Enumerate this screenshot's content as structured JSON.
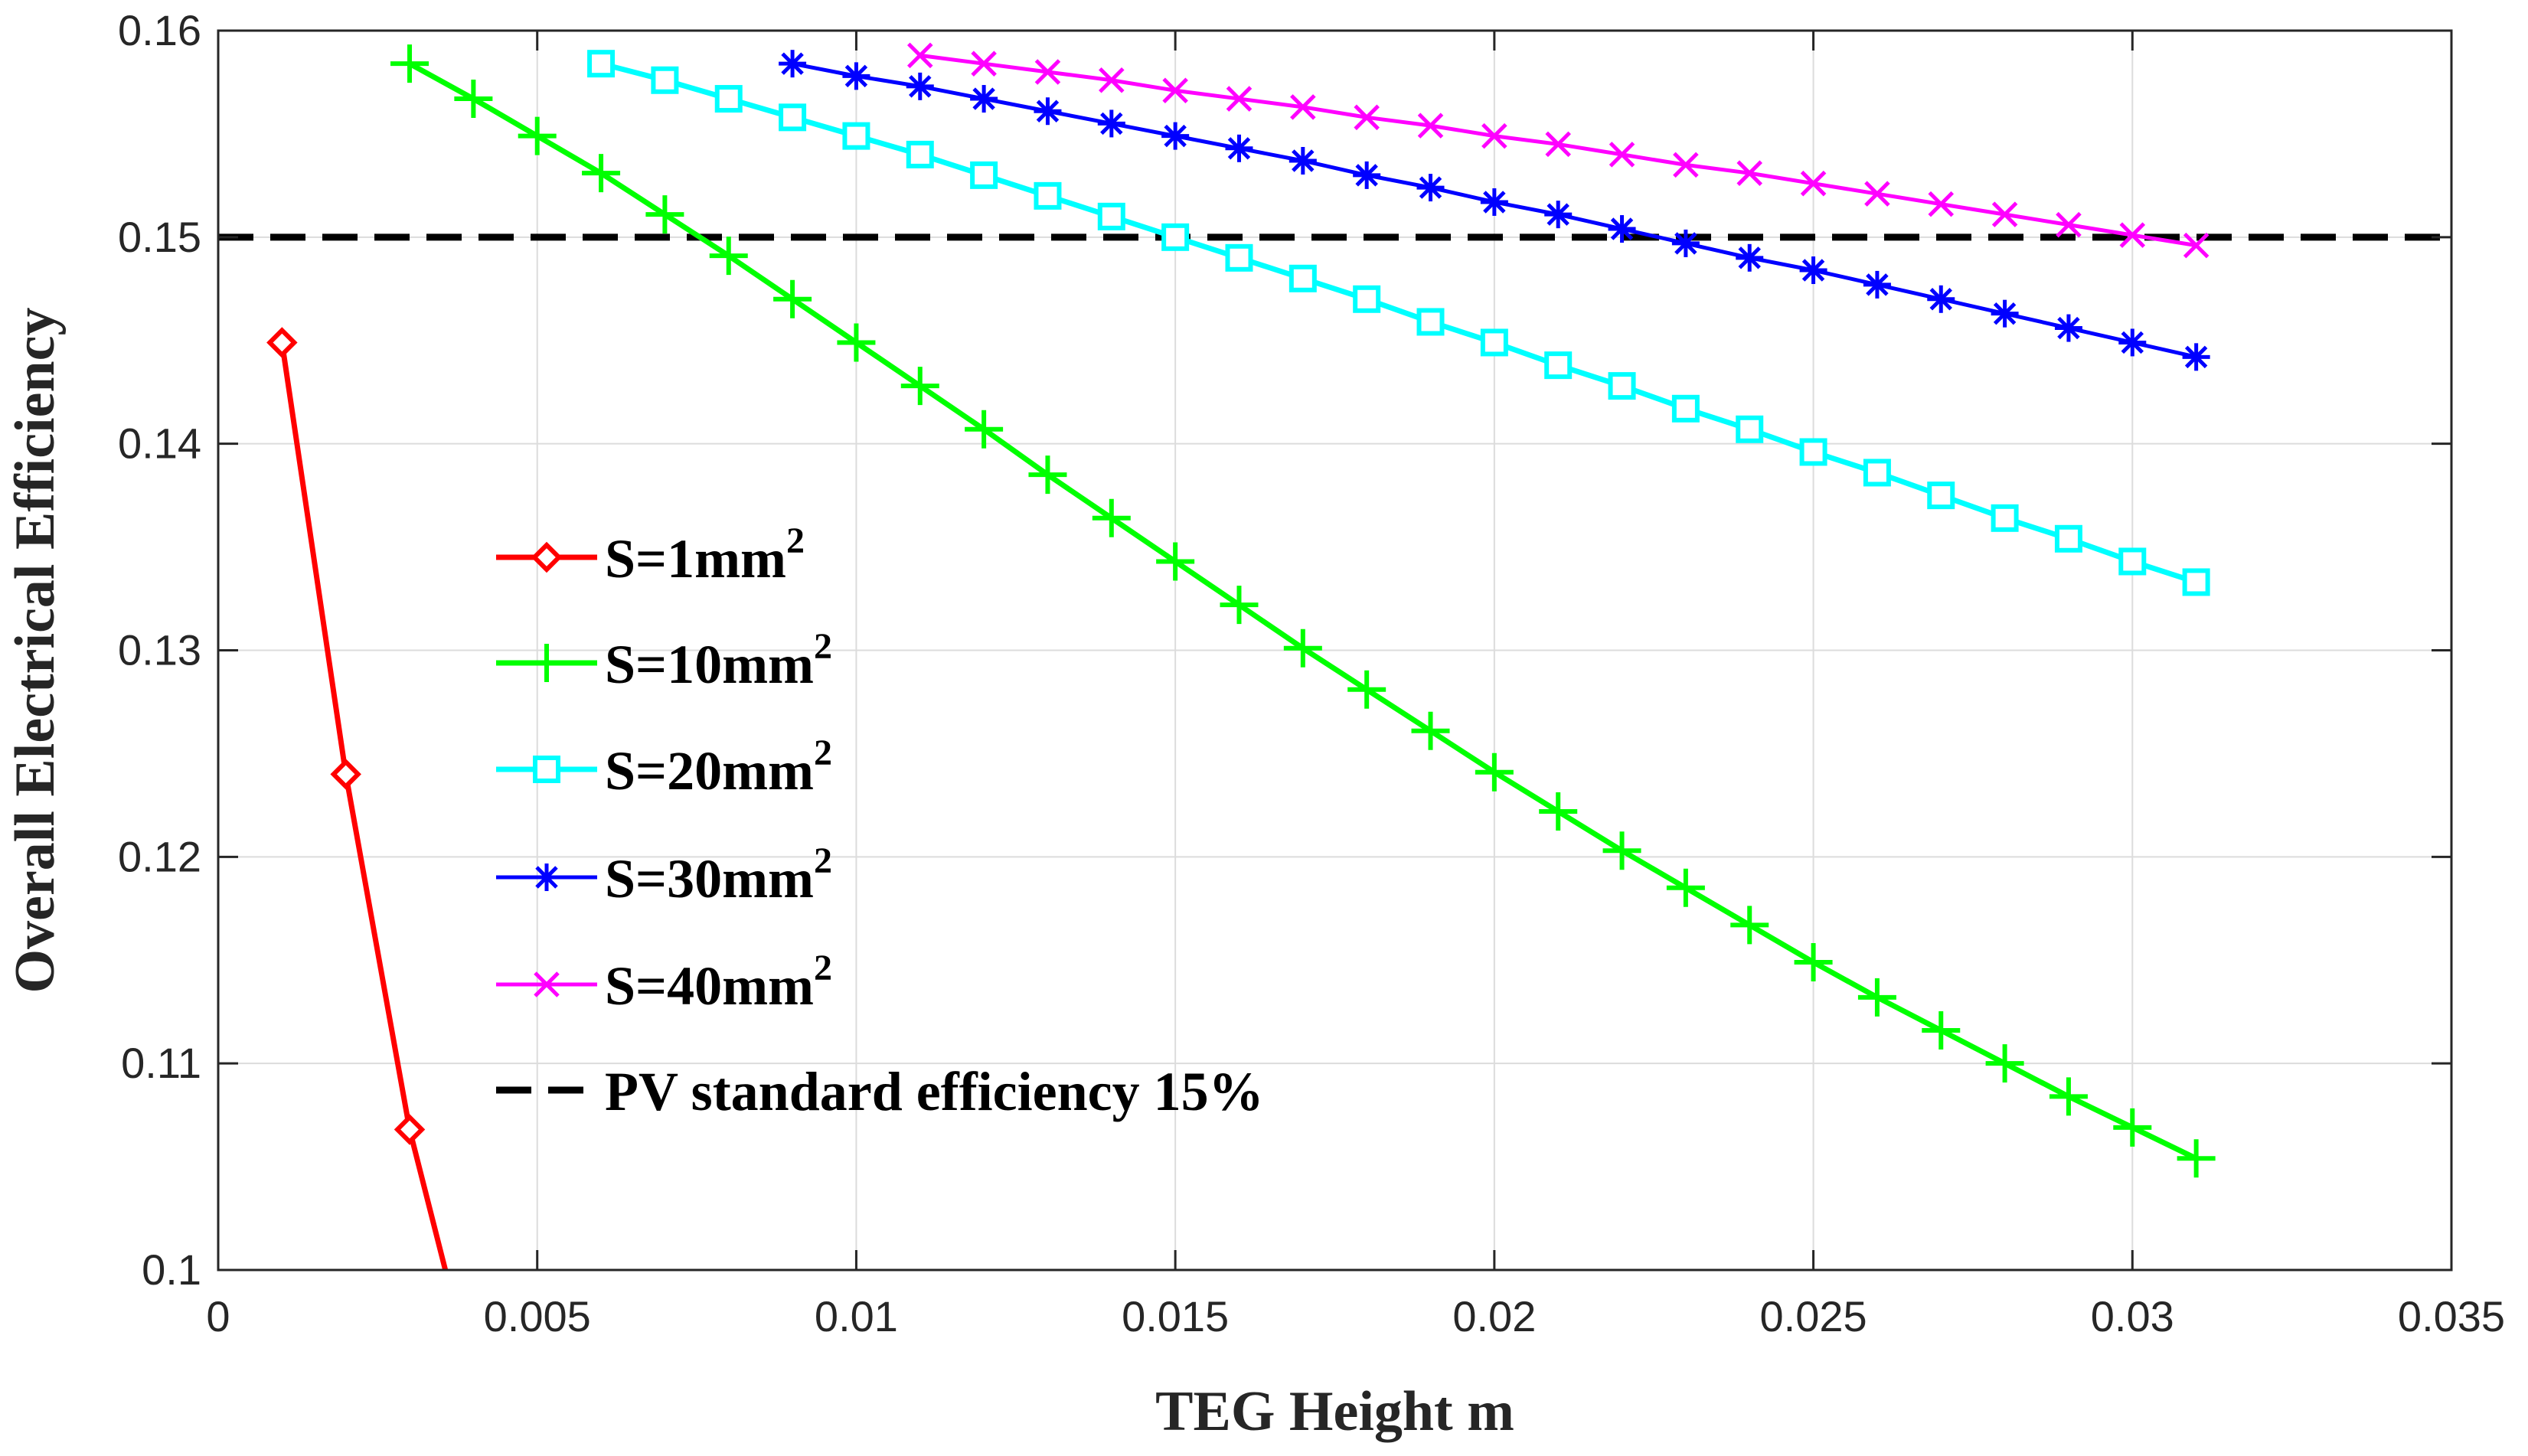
{
  "chart_data": {
    "type": "line",
    "title": "",
    "xlabel": "TEG Height m",
    "ylabel": "Overall Electrical Efficiency",
    "xlim": [
      0,
      0.035
    ],
    "ylim": [
      0.1,
      0.16
    ],
    "xticks": [
      0,
      0.005,
      0.01,
      0.015,
      0.02,
      0.025,
      0.03,
      0.035
    ],
    "xtick_labels": [
      "0",
      "0.005",
      "0.01",
      "0.015",
      "0.02",
      "0.025",
      "0.03",
      "0.035"
    ],
    "yticks": [
      0.1,
      0.11,
      0.12,
      0.13,
      0.14,
      0.15,
      0.16
    ],
    "ytick_labels": [
      "0.1",
      "0.11",
      "0.12",
      "0.13",
      "0.14",
      "0.15",
      "0.16"
    ],
    "grid": true,
    "legend_position": "center-left",
    "series": [
      {
        "name": "S=1mm",
        "superscript": "2",
        "color": "#ff0000",
        "marker": "diamond",
        "x": [
          0.001,
          0.002,
          0.003
        ],
        "y": [
          0.1449,
          0.124,
          0.1068
        ],
        "line_extends_to": {
          "x": 0.00356,
          "y": 0.1
        }
      },
      {
        "name": "S=10mm",
        "superscript": "2",
        "color": "#00ff00",
        "marker": "plus",
        "x": [
          0.003,
          0.004,
          0.005,
          0.006,
          0.007,
          0.008,
          0.009,
          0.01,
          0.011,
          0.012,
          0.013,
          0.014,
          0.015,
          0.016,
          0.017,
          0.018,
          0.019,
          0.02,
          0.021,
          0.022,
          0.023,
          0.024,
          0.025,
          0.026,
          0.027,
          0.028,
          0.029,
          0.03,
          0.031
        ],
        "y": [
          0.1584,
          0.1567,
          0.1549,
          0.1531,
          0.1511,
          0.1491,
          0.147,
          0.1449,
          0.1428,
          0.1407,
          0.1385,
          0.1364,
          0.1343,
          0.1322,
          0.1301,
          0.1281,
          0.1261,
          0.1241,
          0.1222,
          0.1203,
          0.1185,
          0.1167,
          0.1149,
          0.1132,
          0.1116,
          0.11,
          0.1084,
          0.1069,
          0.1054
        ]
      },
      {
        "name": "S=20mm",
        "superscript": "2",
        "color": "#00ffff",
        "marker": "square",
        "x": [
          0.006,
          0.007,
          0.008,
          0.009,
          0.01,
          0.011,
          0.012,
          0.013,
          0.014,
          0.015,
          0.016,
          0.017,
          0.018,
          0.019,
          0.02,
          0.021,
          0.022,
          0.023,
          0.024,
          0.025,
          0.026,
          0.027,
          0.028,
          0.029,
          0.03,
          0.031
        ],
        "y": [
          0.1584,
          0.1576,
          0.1567,
          0.1558,
          0.1549,
          0.154,
          0.153,
          0.152,
          0.151,
          0.15,
          0.149,
          0.148,
          0.147,
          0.1459,
          0.1449,
          0.1438,
          0.1428,
          0.1417,
          0.1407,
          0.1396,
          0.1386,
          0.1375,
          0.1364,
          0.1354,
          0.1343,
          0.1333
        ]
      },
      {
        "name": "S=30mm",
        "superscript": "2",
        "color": "#0000ff",
        "marker": "asterisk",
        "x": [
          0.009,
          0.01,
          0.011,
          0.012,
          0.013,
          0.014,
          0.015,
          0.016,
          0.017,
          0.018,
          0.019,
          0.02,
          0.021,
          0.022,
          0.023,
          0.024,
          0.025,
          0.026,
          0.027,
          0.028,
          0.029,
          0.03,
          0.031
        ],
        "y": [
          0.1584,
          0.1578,
          0.1573,
          0.1567,
          0.1561,
          0.1555,
          0.1549,
          0.1543,
          0.1537,
          0.153,
          0.1524,
          0.1517,
          0.1511,
          0.1504,
          0.1497,
          0.149,
          0.1484,
          0.1477,
          0.147,
          0.1463,
          0.1456,
          0.1449,
          0.1442
        ]
      },
      {
        "name": "S=40mm",
        "superscript": "2",
        "color": "#ff00ff",
        "marker": "x",
        "x": [
          0.011,
          0.012,
          0.013,
          0.014,
          0.015,
          0.016,
          0.017,
          0.018,
          0.019,
          0.02,
          0.021,
          0.022,
          0.023,
          0.024,
          0.025,
          0.026,
          0.027,
          0.028,
          0.029,
          0.03,
          0.031
        ],
        "y": [
          0.1588,
          0.1584,
          0.158,
          0.1576,
          0.1571,
          0.1567,
          0.1563,
          0.1558,
          0.1554,
          0.1549,
          0.1545,
          0.154,
          0.1535,
          0.1531,
          0.1526,
          0.1521,
          0.1516,
          0.1511,
          0.1506,
          0.1501,
          0.1496
        ]
      }
    ],
    "reference_line": {
      "name": "PV standard efficiency 15%",
      "y": 0.15,
      "color": "#000000",
      "style": "dashed"
    }
  }
}
